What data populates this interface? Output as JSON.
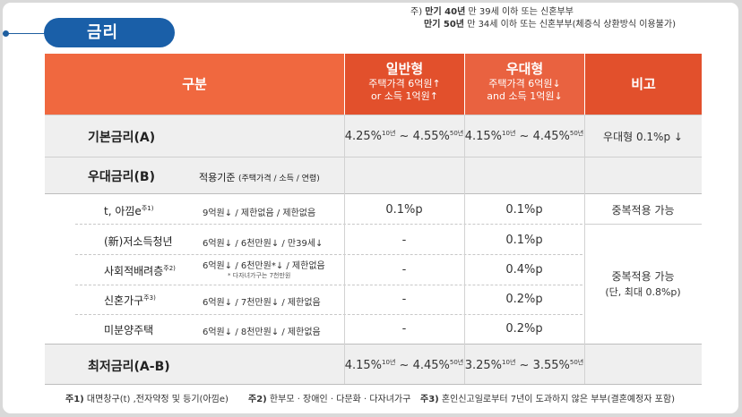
{
  "section_title": "금리",
  "top_notes": [
    {
      "prefix": "주)",
      "bold": "만기 40년",
      "text": "만 39세 이하 또는 신혼부부"
    },
    {
      "prefix": "",
      "bold": "만기 50년",
      "text": "만 34세 이하 또는 신혼부부(체증식 상환방식 이용불가)"
    }
  ],
  "header": {
    "col1": "구분",
    "col2_title": "일반형",
    "col2_sub1": "주택가격 6억원↑",
    "col2_sub2": "or 소득 1억원↑",
    "col3_title": "우대형",
    "col3_sub1": "주택가격 6억원↓",
    "col3_sub2": "and 소득 1억원↓",
    "col4": "비고"
  },
  "base_rate": {
    "label": "기본금리(A)",
    "general_from": "4.25%",
    "general_from_sup": "10년",
    "general_to": "4.55%",
    "general_to_sup": "50년",
    "prefer_from": "4.15%",
    "prefer_from_sup": "10년",
    "prefer_to": "4.45%",
    "prefer_to_sup": "50년",
    "note": "우대형 0.1%p ↓"
  },
  "discount": {
    "label": "우대금리(B)",
    "criteria_label": "적용기준",
    "criteria_sub": "(주택가격 / 소득 / 연령)"
  },
  "items": [
    {
      "name": "t, 아낌e",
      "name_sup": "주1)",
      "criteria": "9억원↓ / 제한없음 / 제한없음",
      "criteria_sub": "",
      "general": "0.1%p",
      "prefer": "0.1%p"
    },
    {
      "name": "(新)저소득청년",
      "name_sup": "",
      "criteria": "6억원↓ / 6천만원↓ / 만39세↓",
      "criteria_sub": "",
      "general": "-",
      "prefer": "0.1%p"
    },
    {
      "name": "사회적배려층",
      "name_sup": "주2)",
      "criteria": "6억원↓ / 6천만원*↓ / 제한없음",
      "criteria_sub": "* 다자녀가구는 7천만원",
      "general": "-",
      "prefer": "0.4%p"
    },
    {
      "name": "신혼가구",
      "name_sup": "주3)",
      "criteria": "6억원↓ / 7천만원↓ / 제한없음",
      "criteria_sub": "",
      "general": "-",
      "prefer": "0.2%p"
    },
    {
      "name": "미분양주택",
      "name_sup": "",
      "criteria": "6억원↓ / 8천만원↓ / 제한없음",
      "criteria_sub": "",
      "general": "-",
      "prefer": "0.2%p"
    }
  ],
  "remarks": {
    "dup1": "중복적용 가능",
    "dup2": "중복적용 가능",
    "dup2_sub": "(단, 최대 0.8%p)"
  },
  "min_rate": {
    "label": "최저금리(A-B)",
    "general_from": "4.15%",
    "general_from_sup": "10년",
    "general_to": "4.45%",
    "general_to_sup": "50년",
    "prefer_from": "3.25%",
    "prefer_from_sup": "10년",
    "prefer_to": "3.55%",
    "prefer_to_sup": "50년"
  },
  "footnotes": [
    {
      "label": "주1)",
      "text": "대면창구(t) ,전자약정 및 등기(아낌e)"
    },
    {
      "label": "주2)",
      "text": "한부모 · 장애인 · 다문화 · 다자녀가구"
    },
    {
      "label": "주3)",
      "text": "혼인신고일로부터 7년이 도과하지 않은 부부(결혼예정자 포함)"
    }
  ],
  "colors": {
    "header_orange": "#f0683f",
    "header_red": "#e2502c",
    "pill_blue": "#1a5fa8"
  }
}
